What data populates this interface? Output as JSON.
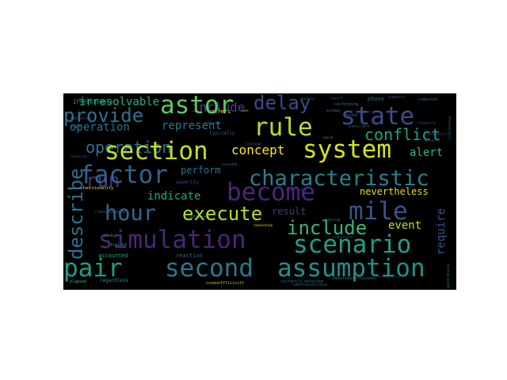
{
  "word_cloud": {
    "background": "#000000",
    "words": [
      {
        "text": "astor",
        "color": "#5ec962"
      },
      {
        "text": "state",
        "color": "#3e4a89"
      },
      {
        "text": "rule",
        "color": "#b5de2b"
      },
      {
        "text": "system",
        "color": "#d8e219"
      },
      {
        "text": "section",
        "color": "#c2df23"
      },
      {
        "text": "factor",
        "color": "#33638d"
      },
      {
        "text": "become",
        "color": "#482878"
      },
      {
        "text": "characteristic",
        "color": "#26828e"
      },
      {
        "text": "hour",
        "color": "#31688e"
      },
      {
        "text": "mile",
        "color": "#3b528b"
      },
      {
        "text": "execute",
        "color": "#b5de2b"
      },
      {
        "text": "simulation",
        "color": "#482878"
      },
      {
        "text": "scenario",
        "color": "#1f9e89"
      },
      {
        "text": "pair",
        "color": "#1f9e89"
      },
      {
        "text": "second",
        "color": "#2a788e"
      },
      {
        "text": "assumption",
        "color": "#21918c"
      },
      {
        "text": "include",
        "color": "#35b779"
      },
      {
        "text": "provide",
        "color": "#2c728e"
      },
      {
        "text": "delay",
        "color": "#3e4a89"
      },
      {
        "text": "conflict",
        "color": "#1fa187"
      },
      {
        "text": "operation",
        "color": "#2c728e"
      },
      {
        "text": "represent",
        "color": "#2a788e"
      },
      {
        "text": "concept",
        "color": "#fde725"
      },
      {
        "text": "indicate",
        "color": "#22a884"
      },
      {
        "text": "perform",
        "color": "#2c728e"
      },
      {
        "text": "alert",
        "color": "#35b779"
      },
      {
        "text": "describe",
        "color": "#2c728e"
      },
      {
        "text": "run",
        "color": "#46337e"
      },
      {
        "text": "require",
        "color": "#3b528b"
      },
      {
        "text": "result",
        "color": "#443983"
      },
      {
        "text": "event",
        "color": "#c2df23"
      },
      {
        "text": "nevertheless",
        "color": "#d8e219"
      },
      {
        "text": "irresolvable",
        "color": "#29af7f"
      },
      {
        "text": "refers",
        "color": "#fde725"
      },
      {
        "text": "typically",
        "color": "#3b528b"
      },
      {
        "text": "phase",
        "color": "#2c728e"
      },
      {
        "text": "computed",
        "color": "#31688e"
      },
      {
        "text": "severity",
        "color": "#3e4a89"
      },
      {
        "text": "functionality",
        "color": "#fde725"
      },
      {
        "text": "accounted",
        "color": "#22a884"
      },
      {
        "text": "reaction",
        "color": "#31688e"
      },
      {
        "text": "regardless",
        "color": "#21918c"
      },
      {
        "text": "elapsed",
        "color": "#35b779"
      },
      {
        "text": "ccoonnfflliicctt",
        "color": "#b5de2b"
      },
      {
        "text": "currently detected",
        "color": "#2c728e"
      },
      {
        "text": "signal",
        "color": "#21918c"
      },
      {
        "text": "continue",
        "color": "#31688e"
      },
      {
        "text": "interference",
        "color": "#2c728e"
      },
      {
        "text": "zone",
        "color": "#b5de2b"
      },
      {
        "text": "cycle",
        "color": "#35b779"
      },
      {
        "text": "entering",
        "color": "#21918c"
      },
      {
        "text": "conforming",
        "color": "#26828e"
      },
      {
        "text": "found",
        "color": "#2c728e"
      },
      {
        "text": "straight",
        "color": "#35b779"
      },
      {
        "text": "ownship",
        "color": "#5ec962"
      },
      {
        "text": "transition",
        "color": "#2c728e"
      },
      {
        "text": "ddeetteeccttiioonn",
        "color": "#2a788e"
      },
      {
        "text": "mutually",
        "color": "#3b528b"
      },
      {
        "text": "synchronicity",
        "color": "#21918c"
      },
      {
        "text": "frequently",
        "color": "#3e4a89"
      },
      {
        "text": "minimum",
        "color": "#21918c"
      },
      {
        "text": "undesirable",
        "color": "#2c728e"
      },
      {
        "text": "support",
        "color": "#3e4a89"
      },
      {
        "text": "spilliont",
        "color": "#3e4a89"
      },
      {
        "text": "frequentire",
        "color": "#3e4a89"
      },
      {
        "text": "addressed",
        "color": "#3b528b"
      },
      {
        "text": "achieved",
        "color": "#2c728e"
      },
      {
        "text": "provided",
        "color": "#2c728e"
      },
      {
        "text": "resolution",
        "color": "#fde725"
      },
      {
        "text": "remaining",
        "color": "#3e4a89"
      },
      {
        "text": "rreevviieewweedd",
        "color": "#2a788e"
      },
      {
        "text": "uuttaassdd",
        "color": "#35b779"
      }
    ]
  }
}
